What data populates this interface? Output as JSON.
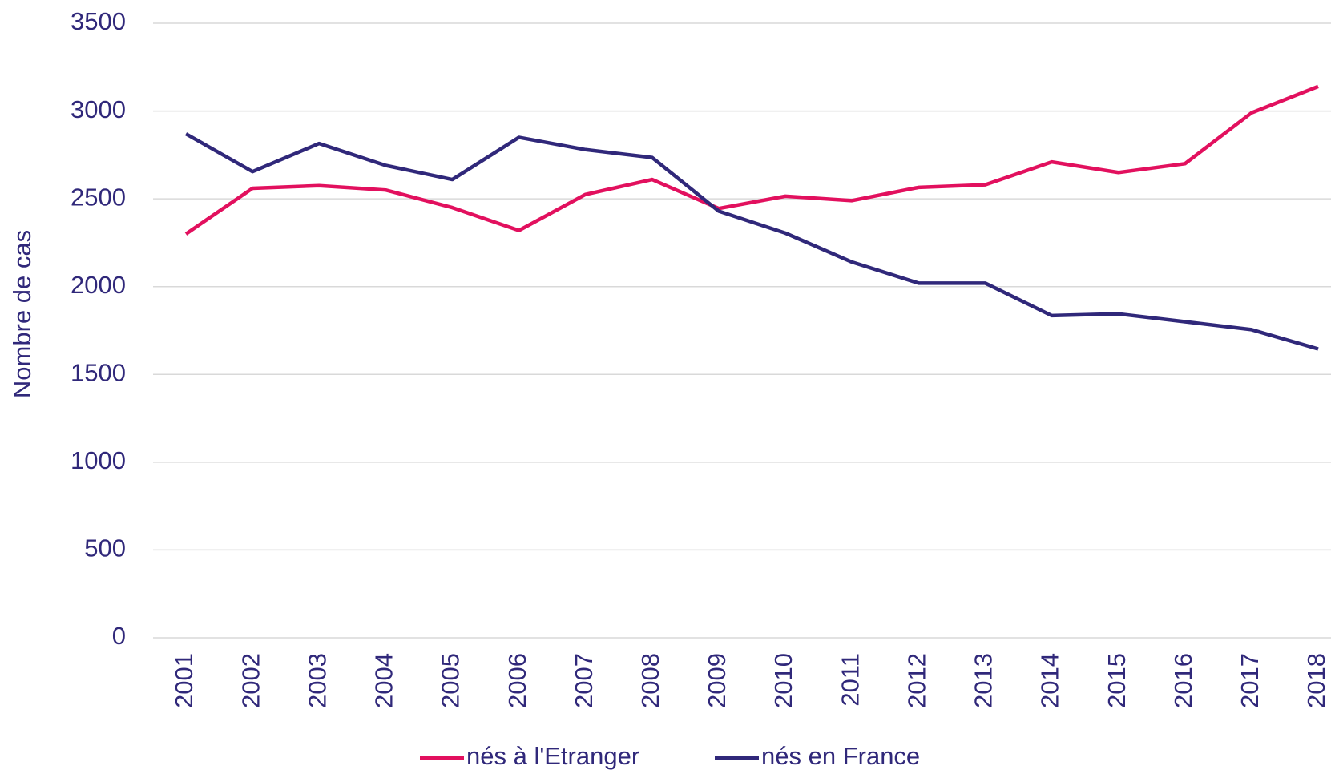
{
  "chart_data": {
    "type": "line",
    "y_label": "Nombre de cas",
    "categories": [
      "2001",
      "2002",
      "2003",
      "2004",
      "2005",
      "2006",
      "2007",
      "2008",
      "2009",
      "2010",
      "2011",
      "2012",
      "2013",
      "2014",
      "2015",
      "2016",
      "2017",
      "2018"
    ],
    "series": [
      {
        "name": "nés à l'Etranger",
        "color": "#e2105e",
        "values": [
          2300,
          2560,
          2575,
          2550,
          2450,
          2320,
          2525,
          2610,
          2445,
          2515,
          2490,
          2565,
          2580,
          2710,
          2650,
          2700,
          2990,
          3140
        ]
      },
      {
        "name": "nés en France",
        "color": "#30287a",
        "values": [
          2870,
          2655,
          2815,
          2690,
          2610,
          2850,
          2780,
          2735,
          2430,
          2305,
          2140,
          2020,
          2020,
          1835,
          1845,
          1800,
          1755,
          1645
        ]
      }
    ],
    "ylim": [
      0,
      3500
    ],
    "yticks": [
      0,
      500,
      1000,
      1500,
      2000,
      2500,
      3000,
      3500
    ],
    "grid": true,
    "legend": "bottom"
  }
}
